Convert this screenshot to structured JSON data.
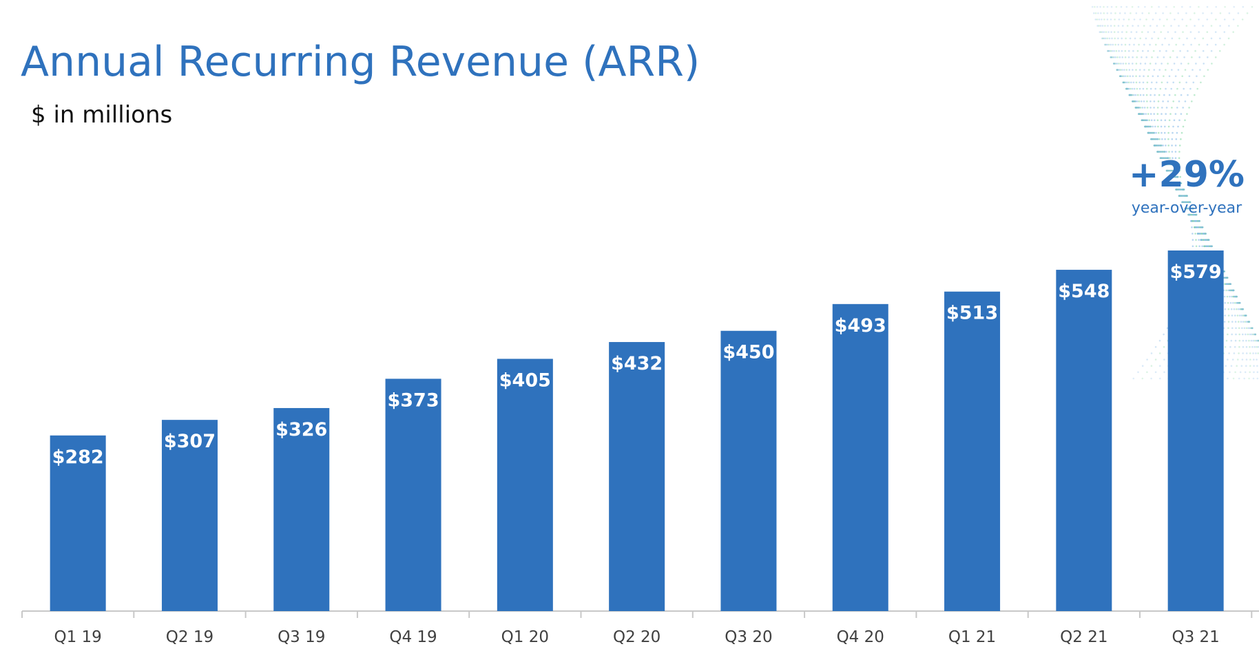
{
  "header": {
    "title": "Annual Recurring Revenue (ARR)",
    "subtitle": "$ in millions"
  },
  "callout": {
    "value": "+29%",
    "label": "year-over-year"
  },
  "colors": {
    "bar": "#2F72BD",
    "accent": "#2F72BD",
    "axis": "#C8C8C8",
    "tick_label": "#404040"
  },
  "chart_data": {
    "type": "bar",
    "title": "Annual Recurring Revenue (ARR)",
    "subtitle": "$ in millions",
    "categories": [
      "Q1 19",
      "Q2 19",
      "Q3 19",
      "Q4 19",
      "Q1 20",
      "Q2 20",
      "Q3 20",
      "Q4 20",
      "Q1 21",
      "Q2 21",
      "Q3 21"
    ],
    "values": [
      282,
      307,
      326,
      373,
      405,
      432,
      450,
      493,
      513,
      548,
      579
    ],
    "data_labels": [
      "$282",
      "$307",
      "$326",
      "$373",
      "$405",
      "$432",
      "$450",
      "$493",
      "$513",
      "$548",
      "$579"
    ],
    "ylim": [
      0,
      579
    ],
    "grid": false,
    "legend": "none"
  }
}
